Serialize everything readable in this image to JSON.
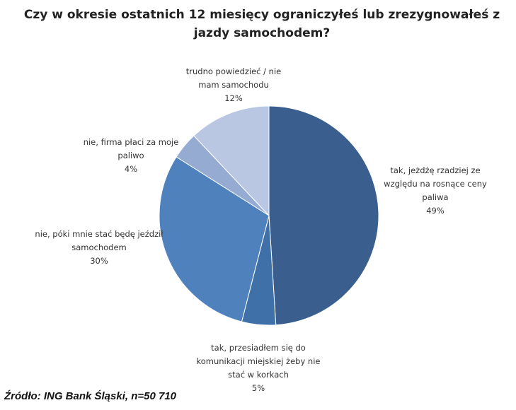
{
  "chart_data": {
    "type": "pie",
    "title": "Czy w okresie ostatnich 12 miesięcy ograniczyłeś lub zrezygnowałeś z jazdy samochodem?",
    "categories": [
      "tak, jeżdżę rzadziej ze względu na rosnące ceny paliwa",
      "tak, przesiadłem się do komunikacji miejskiej żeby nie stać w korkach",
      "nie, póki mnie stać będę jeździł samochodem",
      "nie, firma płaci za moje paliwo",
      "trudno powiedzieć / nie mam samochodu"
    ],
    "values": [
      49,
      5,
      30,
      4,
      12
    ],
    "value_labels": [
      "49%",
      "5%",
      "30%",
      "4%",
      "12%"
    ],
    "colors": [
      "#3a5f8f",
      "#4070a8",
      "#4f81bd",
      "#95abd2",
      "#b9c7e2"
    ],
    "source": "Źródło: ING Bank Śląski, n=50 710"
  }
}
